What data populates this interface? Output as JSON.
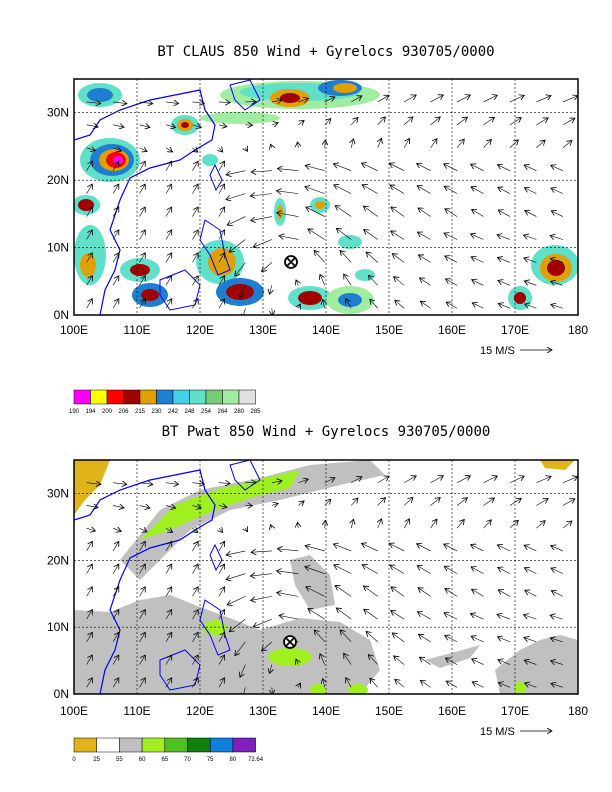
{
  "panels": [
    {
      "title": "BT CLAUS 850 Wind + Gyrelocs 930705/0000",
      "x_ticks": [
        "100E",
        "110E",
        "120E",
        "130E",
        "140E",
        "150E",
        "160E",
        "170E",
        "180"
      ],
      "y_ticks": [
        "0N",
        "10N",
        "20N",
        "30N"
      ],
      "vector_unit": "15 M/S",
      "colorbar_labels": [
        "190",
        "194",
        "200",
        "206",
        "215",
        "230",
        "242",
        "248",
        "254",
        "264",
        "280",
        "285"
      ],
      "colorbar_colors": [
        "#ff00ff",
        "#ffff00",
        "#ff0000",
        "#a00000",
        "#e0a000",
        "#1e7fd0",
        "#40d0e8",
        "#60e0c8",
        "#78cc78",
        "#a0eca0",
        "#e0e0e0"
      ]
    },
    {
      "title": "BT Pwat 850 Wind + Gyrelocs 930705/0000",
      "x_ticks": [
        "100E",
        "110E",
        "120E",
        "130E",
        "140E",
        "150E",
        "160E",
        "170E",
        "180"
      ],
      "y_ticks": [
        "0N",
        "10N",
        "20N",
        "30N"
      ],
      "vector_unit": "15 M/S",
      "colorbar_labels": [
        "0",
        "25",
        "55",
        "60",
        "65",
        "70",
        "75",
        "80",
        "72.64"
      ],
      "colorbar_colors": [
        "#e0b418",
        "#ffffff",
        "#c0c0c0",
        "#a0f020",
        "#50c020",
        "#108010",
        "#1080e0",
        "#8020c0"
      ]
    }
  ],
  "gyre_location": {
    "lon": 134,
    "lat": 8.5
  }
}
